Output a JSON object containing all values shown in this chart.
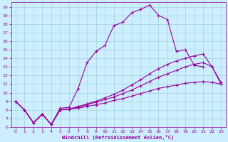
{
  "xlabel": "Windchill (Refroidissement éolien,°C)",
  "bg_color": "#cceeff",
  "line_color": "#990099",
  "grid_color": "#99cccc",
  "xlim": [
    -0.5,
    23.5
  ],
  "ylim": [
    6,
    20.5
  ],
  "xticks": [
    0,
    1,
    2,
    3,
    4,
    5,
    6,
    7,
    8,
    9,
    10,
    11,
    12,
    13,
    14,
    15,
    16,
    17,
    18,
    19,
    20,
    21,
    22,
    23
  ],
  "yticks": [
    6,
    7,
    8,
    9,
    10,
    11,
    12,
    13,
    14,
    15,
    16,
    17,
    18,
    19,
    20
  ],
  "series1_x": [
    0,
    1,
    2,
    3,
    4,
    5,
    6,
    7,
    8,
    9,
    10,
    11,
    12,
    13,
    14,
    15,
    16,
    17,
    18,
    19,
    20,
    21
  ],
  "series1_y": [
    9.0,
    8.0,
    6.5,
    7.5,
    6.3,
    8.2,
    8.3,
    10.5,
    13.5,
    14.8,
    15.5,
    17.8,
    18.2,
    19.3,
    19.7,
    20.2,
    19.0,
    18.5,
    14.8,
    15.0,
    13.2,
    13.0
  ],
  "series2_x": [
    0,
    1,
    2,
    3,
    4,
    5,
    6,
    7,
    8,
    9,
    10,
    11,
    12,
    13,
    14,
    15,
    16,
    17,
    18,
    19,
    20,
    21,
    22,
    23
  ],
  "series2_y": [
    9.0,
    8.0,
    6.5,
    7.5,
    6.3,
    8.0,
    8.1,
    8.4,
    8.7,
    9.0,
    9.4,
    9.8,
    10.3,
    10.9,
    11.5,
    12.2,
    12.8,
    13.3,
    13.7,
    14.0,
    14.3,
    14.5,
    13.0,
    11.2
  ],
  "series3_x": [
    0,
    1,
    2,
    3,
    4,
    5,
    6,
    7,
    8,
    9,
    10,
    11,
    12,
    13,
    14,
    15,
    16,
    17,
    18,
    19,
    20,
    21,
    22,
    23
  ],
  "series3_y": [
    9.0,
    8.0,
    6.5,
    7.5,
    6.3,
    8.0,
    8.1,
    8.3,
    8.6,
    8.9,
    9.2,
    9.5,
    9.9,
    10.3,
    10.8,
    11.3,
    11.8,
    12.2,
    12.6,
    13.0,
    13.3,
    13.5,
    13.0,
    11.0
  ],
  "series4_x": [
    0,
    1,
    2,
    3,
    4,
    5,
    6,
    7,
    8,
    9,
    10,
    11,
    12,
    13,
    14,
    15,
    16,
    17,
    18,
    19,
    20,
    21,
    22,
    23
  ],
  "series4_y": [
    9.0,
    8.0,
    6.5,
    7.5,
    6.3,
    8.0,
    8.1,
    8.2,
    8.4,
    8.6,
    8.8,
    9.1,
    9.3,
    9.6,
    9.9,
    10.2,
    10.5,
    10.7,
    10.9,
    11.1,
    11.2,
    11.3,
    11.2,
    11.0
  ]
}
